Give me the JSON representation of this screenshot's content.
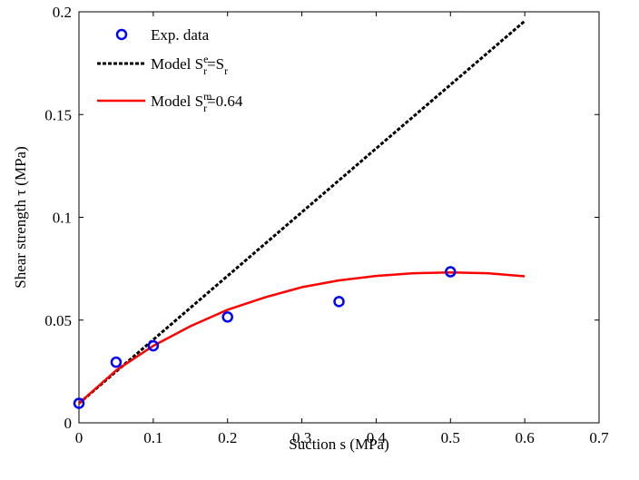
{
  "chart_data": {
    "type": "scatter",
    "title": "",
    "xlabel": "Suction s (MPa)",
    "ylabel": "Shear strength τ (MPa)",
    "xlim": [
      0,
      0.7
    ],
    "ylim": [
      0,
      0.2
    ],
    "xticks": [
      0,
      0.1,
      0.2,
      0.3,
      0.4,
      0.5,
      0.6,
      0.7
    ],
    "xtick_labels": [
      "0",
      "0.1",
      "0.2",
      "0.3",
      "0.4",
      "0.5",
      "0.6",
      "0.7"
    ],
    "yticks": [
      0,
      0.05,
      0.1,
      0.15,
      0.2
    ],
    "ytick_labels": [
      "0",
      "0.05",
      "0.1",
      "0.15",
      "0.2"
    ],
    "grid": false,
    "legend_position": "top-left",
    "series": [
      {
        "name": "Exp. data",
        "kind": "markers",
        "color": "#0000ff",
        "x": [
          0,
          0.05,
          0.1,
          0.2,
          0.35,
          0.5
        ],
        "y": [
          0.0095,
          0.0295,
          0.0375,
          0.0515,
          0.059,
          0.0735
        ]
      },
      {
        "name": "Model S_r^e=S_r",
        "legend_parts": {
          "prefix": "Model S",
          "sup1": "e",
          "sub1": "r",
          "mid": "=S",
          "sub2": "r",
          "suffix": ""
        },
        "kind": "dashed-line",
        "color": "#000000",
        "x": [
          0,
          0.1,
          0.2,
          0.3,
          0.4,
          0.5,
          0.6
        ],
        "y": [
          0.0095,
          0.0405,
          0.0715,
          0.1025,
          0.1335,
          0.1645,
          0.1955
        ]
      },
      {
        "name": "Model S_r^m=0.64",
        "legend_parts": {
          "prefix": "Model S",
          "sup1": "m",
          "sub1": "r",
          "mid": "=0.64",
          "sub2": "",
          "suffix": ""
        },
        "kind": "solid-line",
        "color": "#ff0000",
        "x": [
          0,
          0.05,
          0.1,
          0.15,
          0.2,
          0.25,
          0.3,
          0.35,
          0.4,
          0.45,
          0.5,
          0.55,
          0.6
        ],
        "y": [
          0.0095,
          0.0255,
          0.0375,
          0.047,
          0.055,
          0.061,
          0.066,
          0.0693,
          0.0715,
          0.0728,
          0.0732,
          0.0728,
          0.0713
        ]
      }
    ]
  }
}
